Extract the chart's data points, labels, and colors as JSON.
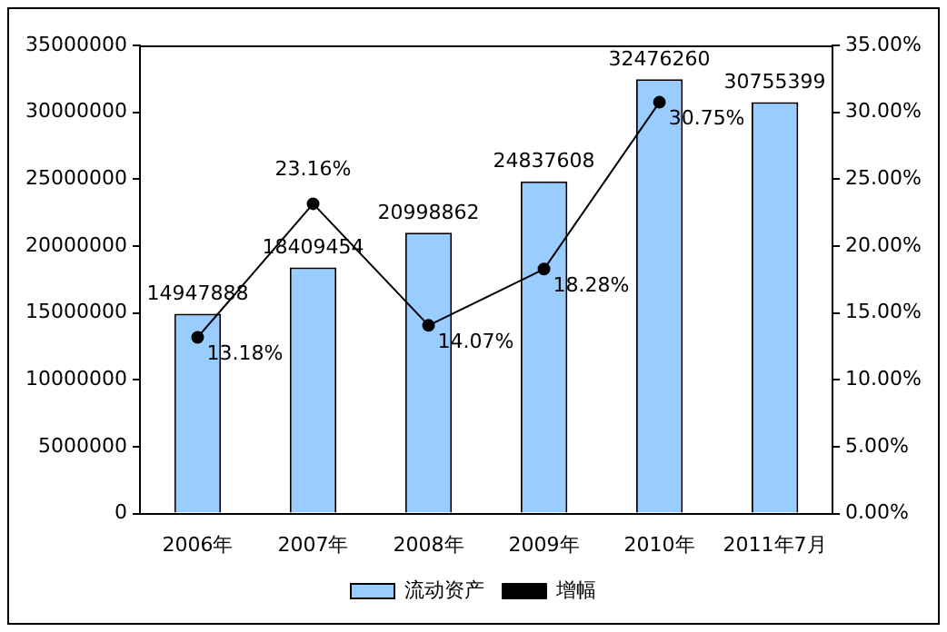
{
  "chart_data": {
    "type": "bar",
    "categories": [
      "2006年",
      "2007年",
      "2008年",
      "2009年",
      "2010年",
      "2011年7月"
    ],
    "series": [
      {
        "name": "流动资产",
        "color": "#99ccff",
        "values": [
          14947888,
          18409454,
          20998862,
          24837608,
          32476260,
          30755399
        ],
        "value_labels": [
          "14947888",
          "18409454",
          "20998862",
          "24837608",
          "32476260",
          "30755399"
        ]
      },
      {
        "name": "增幅",
        "type": "line",
        "axis": "y2",
        "color": "#000000",
        "values": [
          13.18,
          23.16,
          14.07,
          18.28,
          30.75,
          null
        ],
        "value_labels": [
          "13.18%",
          "23.16%",
          "14.07%",
          "18.28%",
          "30.75%",
          null
        ]
      }
    ],
    "ylim": [
      0,
      35000000
    ],
    "yticks": [
      0,
      5000000,
      10000000,
      15000000,
      20000000,
      25000000,
      30000000,
      35000000
    ],
    "y2lim": [
      0,
      35
    ],
    "y2ticks": [
      {
        "value": 0,
        "label": "0.00%"
      },
      {
        "value": 5,
        "label": "5.00%"
      },
      {
        "value": 10,
        "label": "10.00%"
      },
      {
        "value": 15,
        "label": "15.00%"
      },
      {
        "value": 20,
        "label": "20.00%"
      },
      {
        "value": 25,
        "label": "25.00%"
      },
      {
        "value": 30,
        "label": "30.00%"
      },
      {
        "value": 35,
        "label": "35.00%"
      }
    ],
    "grid": false,
    "legend": "bottom",
    "marker": "circle",
    "line_style": "solid"
  }
}
